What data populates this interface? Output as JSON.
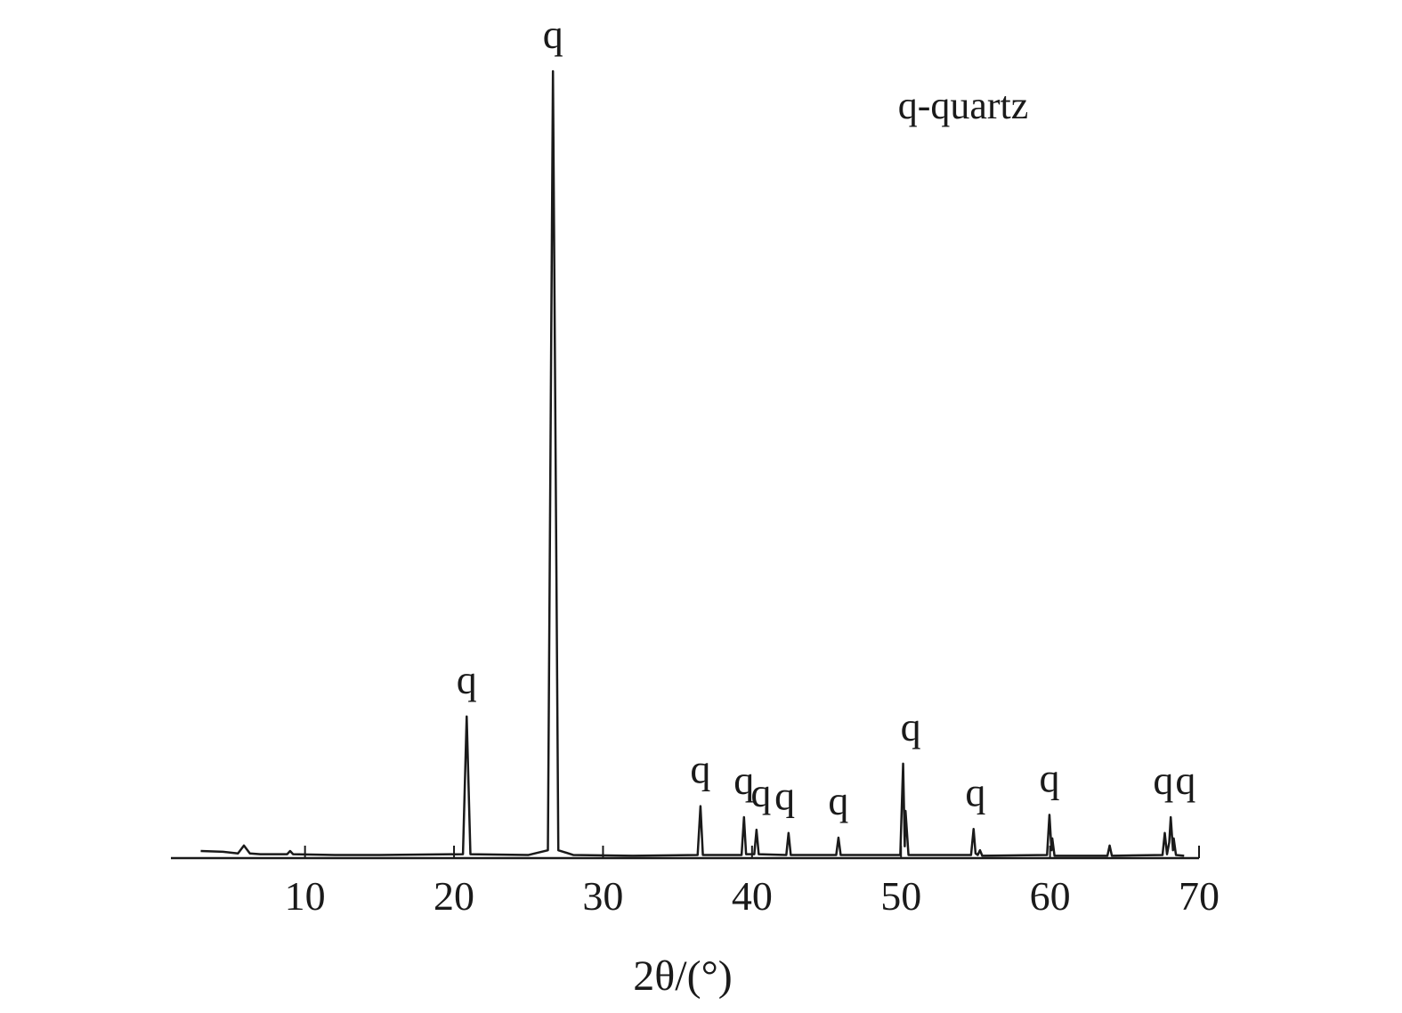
{
  "chart_data": {
    "type": "line",
    "legend_text": "q-quartz",
    "x_label": "2θ/(°)",
    "x": [
      3.0,
      4.5,
      5.5,
      5.9,
      6.3,
      7,
      8.8,
      9,
      9.2,
      12,
      15,
      20.6,
      20.85,
      21.1,
      25,
      26.3,
      26.64,
      27.0,
      28,
      32,
      36.35,
      36.54,
      36.7,
      39.3,
      39.46,
      39.6,
      40.15,
      40.3,
      40.45,
      42.3,
      42.45,
      42.6,
      45.65,
      45.8,
      45.95,
      49.95,
      50.14,
      50.25,
      50.3,
      50.5,
      54.7,
      54.87,
      55.0,
      55.15,
      55.3,
      55.45,
      59.8,
      59.96,
      60.1,
      60.15,
      60.3,
      63.85,
      64.0,
      64.15,
      67.55,
      67.7,
      67.85,
      68.0,
      68.1,
      68.25,
      68.3,
      68.45,
      69.0
    ],
    "series": [
      {
        "color": "#1a1a1a",
        "values": [
          0.9,
          0.8,
          0.6,
          1.6,
          0.6,
          0.5,
          0.5,
          0.9,
          0.5,
          0.4,
          0.4,
          0.5,
          18,
          0.5,
          0.4,
          1.0,
          100,
          1.0,
          0.4,
          0.3,
          0.4,
          6.6,
          0.4,
          0.4,
          5.2,
          0.5,
          0.5,
          3.6,
          0.5,
          0.4,
          3.2,
          0.4,
          0.4,
          2.6,
          0.4,
          0.4,
          12,
          1.5,
          6,
          0.4,
          0.4,
          3.7,
          0.6,
          0.4,
          1.0,
          0.3,
          0.4,
          5.5,
          1.0,
          2.5,
          0.3,
          0.3,
          1.6,
          0.3,
          0.4,
          3.2,
          0.5,
          2,
          5.2,
          1,
          2.5,
          0.4,
          0.3
        ]
      }
    ],
    "peak_labels": [
      {
        "label": "q",
        "x": 20.85,
        "y": 18
      },
      {
        "label": "q",
        "x": 26.64,
        "y": 100
      },
      {
        "label": "q",
        "x": 36.54,
        "y": 6.6
      },
      {
        "label": "q",
        "x": 39.46,
        "y": 5.2
      },
      {
        "label": "q",
        "x": 40.6,
        "y": 3.6
      },
      {
        "label": "q",
        "x": 42.2,
        "y": 3.2
      },
      {
        "label": "q",
        "x": 45.8,
        "y": 2.6
      },
      {
        "label": "q",
        "x": 50.65,
        "y": 12
      },
      {
        "label": "q",
        "x": 55.0,
        "y": 3.7
      },
      {
        "label": "q",
        "x": 59.96,
        "y": 5.5
      },
      {
        "label": "q",
        "x": 67.6,
        "y": 5.2
      },
      {
        "label": "q",
        "x": 69.1,
        "y": 5.2
      }
    ],
    "xlim": [
      1,
      70
    ],
    "xticks": [
      10,
      20,
      30,
      40,
      50,
      60,
      70
    ],
    "ylim": [
      0,
      100
    ]
  }
}
